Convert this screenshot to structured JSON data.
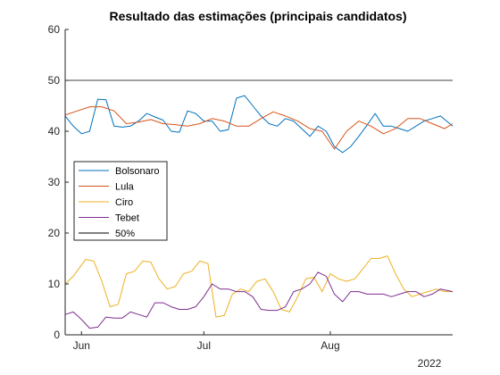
{
  "chart_data": {
    "type": "line",
    "title": "Resultado das estimações (principais candidatos)",
    "xlabel": "",
    "ylabel": "",
    "ylim": [
      0,
      60
    ],
    "yticks": [
      0,
      10,
      20,
      30,
      40,
      50,
      60
    ],
    "x_start": "2022-05-28",
    "x_end": "2022-08-31",
    "xtick_labels": [
      {
        "date": "2022-06-01",
        "label": "Jun"
      },
      {
        "date": "2022-07-01",
        "label": "Jul"
      },
      {
        "date": "2022-08-01",
        "label": "Aug"
      }
    ],
    "year_label": "2022",
    "grid": false,
    "legend_position": "middle-left",
    "series": [
      {
        "name": "Bolsonaro",
        "color": "#0072BD",
        "x": [
          "2022-05-28",
          "2022-05-30",
          "2022-06-01",
          "2022-06-03",
          "2022-06-05",
          "2022-06-07",
          "2022-06-09",
          "2022-06-11",
          "2022-06-13",
          "2022-06-15",
          "2022-06-17",
          "2022-06-19",
          "2022-06-21",
          "2022-06-23",
          "2022-06-25",
          "2022-06-27",
          "2022-06-29",
          "2022-07-01",
          "2022-07-03",
          "2022-07-05",
          "2022-07-07",
          "2022-07-09",
          "2022-07-11",
          "2022-07-13",
          "2022-07-15",
          "2022-07-17",
          "2022-07-19",
          "2022-07-21",
          "2022-07-23",
          "2022-07-25",
          "2022-07-27",
          "2022-07-29",
          "2022-07-31",
          "2022-08-02",
          "2022-08-04",
          "2022-08-06",
          "2022-08-08",
          "2022-08-10",
          "2022-08-12",
          "2022-08-14",
          "2022-08-16",
          "2022-08-18",
          "2022-08-20",
          "2022-08-22",
          "2022-08-24",
          "2022-08-26",
          "2022-08-28",
          "2022-08-31"
        ],
        "values": [
          43,
          41,
          39.5,
          40,
          46.3,
          46.2,
          41,
          40.8,
          41,
          42,
          43.5,
          42.8,
          42.2,
          40,
          39.8,
          44,
          43.5,
          42,
          42,
          40,
          40.3,
          46.5,
          47,
          45,
          43,
          41.5,
          41,
          42.5,
          42,
          40.5,
          39,
          41,
          40,
          37,
          35.8,
          37,
          39,
          41.2,
          43.5,
          41,
          41,
          40.5,
          40,
          41,
          42,
          42.5,
          43,
          41
        ]
      },
      {
        "name": "Lula",
        "color": "#D95319",
        "x": [
          "2022-05-28",
          "2022-05-31",
          "2022-06-03",
          "2022-06-06",
          "2022-06-09",
          "2022-06-12",
          "2022-06-15",
          "2022-06-18",
          "2022-06-21",
          "2022-06-24",
          "2022-06-27",
          "2022-06-30",
          "2022-07-03",
          "2022-07-06",
          "2022-07-09",
          "2022-07-12",
          "2022-07-15",
          "2022-07-18",
          "2022-07-21",
          "2022-07-24",
          "2022-07-27",
          "2022-07-30",
          "2022-08-02",
          "2022-08-05",
          "2022-08-08",
          "2022-08-11",
          "2022-08-14",
          "2022-08-17",
          "2022-08-20",
          "2022-08-23",
          "2022-08-26",
          "2022-08-29",
          "2022-08-31"
        ],
        "values": [
          43.2,
          44,
          44.8,
          44.8,
          44,
          41.5,
          41.8,
          42.3,
          41.5,
          41.3,
          41,
          41.5,
          42.5,
          42,
          41,
          41,
          42.5,
          43.8,
          43,
          42,
          40.5,
          40,
          36.5,
          40,
          42,
          41,
          39.5,
          40.5,
          42.5,
          42.5,
          41.5,
          40.5,
          41.5
        ]
      },
      {
        "name": "Ciro",
        "color": "#EDB120",
        "x": [
          "2022-05-28",
          "2022-05-30",
          "2022-06-02",
          "2022-06-04",
          "2022-06-06",
          "2022-06-08",
          "2022-06-10",
          "2022-06-12",
          "2022-06-14",
          "2022-06-16",
          "2022-06-18",
          "2022-06-20",
          "2022-06-22",
          "2022-06-24",
          "2022-06-26",
          "2022-06-28",
          "2022-06-30",
          "2022-07-02",
          "2022-07-04",
          "2022-07-06",
          "2022-07-08",
          "2022-07-10",
          "2022-07-12",
          "2022-07-14",
          "2022-07-16",
          "2022-07-18",
          "2022-07-20",
          "2022-07-22",
          "2022-07-24",
          "2022-07-26",
          "2022-07-28",
          "2022-07-30",
          "2022-08-01",
          "2022-08-03",
          "2022-08-05",
          "2022-08-07",
          "2022-08-09",
          "2022-08-11",
          "2022-08-13",
          "2022-08-15",
          "2022-08-17",
          "2022-08-19",
          "2022-08-21",
          "2022-08-23",
          "2022-08-25",
          "2022-08-27",
          "2022-08-29",
          "2022-08-31"
        ],
        "values": [
          10,
          11.5,
          14.8,
          14.5,
          10.5,
          5.5,
          6,
          12,
          12.5,
          14.5,
          14.3,
          11,
          9,
          9.5,
          12,
          12.5,
          14.5,
          14,
          3.5,
          3.8,
          8,
          9,
          8.5,
          10.5,
          11,
          8.5,
          5,
          4.5,
          7.5,
          11,
          11.3,
          8.5,
          12,
          11,
          10.5,
          11,
          13,
          15,
          15,
          15.5,
          12,
          9,
          7.5,
          8,
          8.5,
          9,
          8.5,
          8.5
        ]
      },
      {
        "name": "Tebet",
        "color": "#7E2F8E",
        "x": [
          "2022-05-28",
          "2022-05-30",
          "2022-06-01",
          "2022-06-03",
          "2022-06-05",
          "2022-06-07",
          "2022-06-09",
          "2022-06-11",
          "2022-06-13",
          "2022-06-15",
          "2022-06-17",
          "2022-06-19",
          "2022-06-21",
          "2022-06-23",
          "2022-06-25",
          "2022-06-27",
          "2022-06-29",
          "2022-07-01",
          "2022-07-03",
          "2022-07-05",
          "2022-07-07",
          "2022-07-09",
          "2022-07-11",
          "2022-07-13",
          "2022-07-15",
          "2022-07-17",
          "2022-07-19",
          "2022-07-21",
          "2022-07-23",
          "2022-07-25",
          "2022-07-27",
          "2022-07-29",
          "2022-07-31",
          "2022-08-02",
          "2022-08-04",
          "2022-08-06",
          "2022-08-08",
          "2022-08-10",
          "2022-08-12",
          "2022-08-14",
          "2022-08-16",
          "2022-08-18",
          "2022-08-20",
          "2022-08-22",
          "2022-08-24",
          "2022-08-26",
          "2022-08-28",
          "2022-08-31"
        ],
        "values": [
          4,
          4.5,
          3,
          1.3,
          1.5,
          3.5,
          3.3,
          3.3,
          4.5,
          4,
          3.5,
          6.3,
          6.3,
          5.5,
          5,
          5,
          5.5,
          7.5,
          10,
          9,
          9,
          8.5,
          8.5,
          7.5,
          5,
          4.8,
          4.8,
          5.5,
          8.5,
          9,
          10,
          12.3,
          11.5,
          8,
          6.5,
          8.5,
          8.5,
          8,
          8,
          8,
          7.5,
          8,
          8.5,
          8.5,
          7.5,
          8,
          9,
          8.5
        ]
      },
      {
        "name": "50%",
        "color": "#000000",
        "x": [
          "2022-05-28",
          "2022-08-31"
        ],
        "values": [
          50,
          50
        ]
      }
    ]
  }
}
